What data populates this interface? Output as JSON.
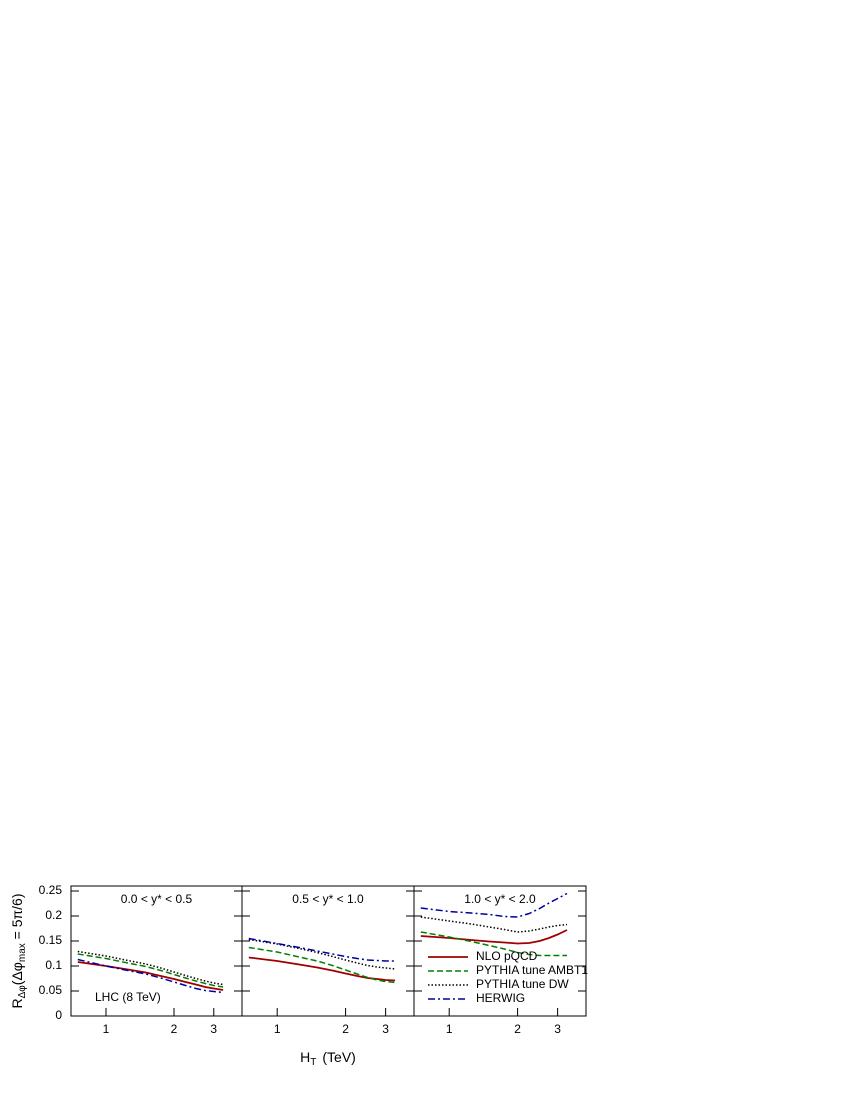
{
  "y_label": {
    "main": "R",
    "sub": "Δφ",
    "rest": "(Δφ",
    "sub2": "max",
    "rest2": " = 5π/6)"
  },
  "x_label": {
    "main": "H",
    "sub": "T",
    "rest": "(TeV)"
  },
  "annotation": "LHC (8 TeV)",
  "chart_data": [
    {
      "type": "line",
      "title": "0.0 < y* < 0.5",
      "log_x": true,
      "x": [
        0.75,
        1,
        1.25,
        1.5,
        1.75,
        2,
        2.25,
        2.5,
        2.75,
        3,
        3.3
      ],
      "xlim": [
        0.7,
        4.0
      ],
      "xticks": [
        1,
        2,
        3
      ],
      "ylim": [
        0,
        0.26
      ],
      "yticks": [
        0,
        0.05,
        0.1,
        0.15,
        0.2,
        0.25
      ],
      "series": [
        {
          "color": "#a00000",
          "style": "solid",
          "values": [
            0.108,
            0.1,
            0.093,
            0.087,
            0.08,
            0.074,
            0.068,
            0.063,
            0.058,
            0.055,
            0.052
          ]
        },
        {
          "color": "#008000",
          "style": "dashed",
          "values": [
            0.124,
            0.115,
            0.106,
            0.099,
            0.091,
            0.083,
            0.076,
            0.07,
            0.065,
            0.061,
            0.058
          ]
        },
        {
          "color": "#000000",
          "style": "dotted",
          "values": [
            0.129,
            0.12,
            0.111,
            0.104,
            0.096,
            0.088,
            0.081,
            0.075,
            0.07,
            0.066,
            0.063
          ]
        },
        {
          "color": "#0000a0",
          "style": "dashdot",
          "values": [
            0.113,
            0.1,
            0.091,
            0.084,
            0.076,
            0.068,
            0.061,
            0.055,
            0.051,
            0.049,
            0.047
          ]
        }
      ]
    },
    {
      "type": "line",
      "title": "0.5 < y* < 1.0",
      "log_x": true,
      "x": [
        0.75,
        1,
        1.25,
        1.5,
        1.75,
        2,
        2.25,
        2.5,
        2.75,
        3,
        3.3
      ],
      "xlim": [
        0.7,
        4.0
      ],
      "xticks": [
        1,
        2,
        3
      ],
      "ylim": [
        0,
        0.26
      ],
      "series": [
        {
          "color": "#a00000",
          "style": "solid",
          "values": [
            0.117,
            0.11,
            0.103,
            0.097,
            0.091,
            0.085,
            0.08,
            0.076,
            0.074,
            0.072,
            0.071
          ]
        },
        {
          "color": "#008000",
          "style": "dashed",
          "values": [
            0.137,
            0.128,
            0.118,
            0.11,
            0.101,
            0.092,
            0.084,
            0.077,
            0.072,
            0.069,
            0.067
          ]
        },
        {
          "color": "#000000",
          "style": "dotted",
          "values": [
            0.153,
            0.144,
            0.135,
            0.127,
            0.119,
            0.112,
            0.106,
            0.101,
            0.098,
            0.096,
            0.094
          ]
        },
        {
          "color": "#0000a0",
          "style": "dashdot",
          "values": [
            0.155,
            0.145,
            0.137,
            0.13,
            0.124,
            0.119,
            0.115,
            0.112,
            0.111,
            0.11,
            0.11
          ]
        }
      ]
    },
    {
      "type": "line",
      "title": "1.0 < y* < 2.0",
      "log_x": true,
      "legend": "center left",
      "x": [
        0.75,
        1,
        1.25,
        1.5,
        1.75,
        2,
        2.25,
        2.5,
        2.75,
        3,
        3.3
      ],
      "xlim": [
        0.7,
        4.0
      ],
      "xticks": [
        1,
        2,
        3
      ],
      "ylim": [
        0,
        0.26
      ],
      "series": [
        {
          "name": "NLO pQCD",
          "color": "#a00000",
          "style": "solid",
          "values": [
            0.16,
            0.156,
            0.152,
            0.149,
            0.147,
            0.145,
            0.146,
            0.15,
            0.156,
            0.163,
            0.172
          ]
        },
        {
          "name": "PYTHIA tune AMBT1",
          "color": "#008000",
          "style": "dashed",
          "values": [
            0.168,
            0.158,
            0.149,
            0.141,
            0.134,
            0.127,
            0.123,
            0.121,
            0.121,
            0.121,
            0.121
          ]
        },
        {
          "name": "PYTHIA tune DW",
          "color": "#000000",
          "style": "dotted",
          "values": [
            0.198,
            0.19,
            0.184,
            0.178,
            0.173,
            0.168,
            0.17,
            0.174,
            0.178,
            0.181,
            0.183
          ]
        },
        {
          "name": "HERWIG",
          "color": "#0000a0",
          "style": "dashdot",
          "values": [
            0.216,
            0.209,
            0.206,
            0.203,
            0.199,
            0.198,
            0.205,
            0.215,
            0.226,
            0.235,
            0.245
          ]
        }
      ]
    }
  ]
}
